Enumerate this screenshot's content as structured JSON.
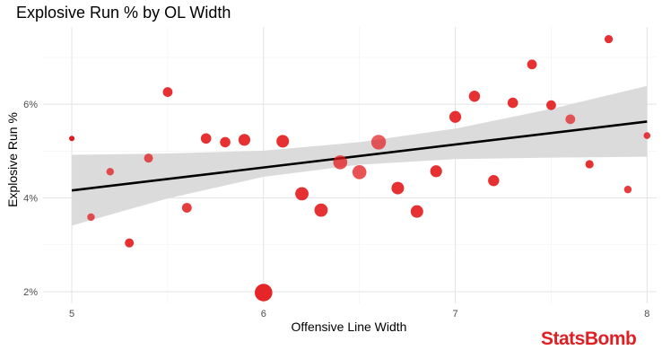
{
  "brand": {
    "name": "StatsBomb",
    "color": "#e01f25"
  },
  "chart_data": {
    "type": "scatter",
    "title": "Explosive Run % by OL Width",
    "xlabel": "Offensive Line Width",
    "ylabel": "Explosive Run %",
    "xlim": [
      4.85,
      8.05
    ],
    "ylim": [
      1.75,
      7.65
    ],
    "x_ticks": [
      5,
      6,
      7,
      8
    ],
    "y_ticks": [
      2,
      4,
      6
    ],
    "y_tick_labels": [
      "2%",
      "4%",
      "6%"
    ],
    "grid": true,
    "legend": "none",
    "point_color": "#e31a1c",
    "points": [
      {
        "x": 5.0,
        "y": 5.27,
        "size": 0.1,
        "alpha": 1.0
      },
      {
        "x": 5.1,
        "y": 3.59,
        "size": 0.25,
        "alpha": 0.75
      },
      {
        "x": 5.2,
        "y": 4.56,
        "size": 0.25,
        "alpha": 0.75
      },
      {
        "x": 5.3,
        "y": 3.04,
        "size": 0.35,
        "alpha": 0.9
      },
      {
        "x": 5.4,
        "y": 4.85,
        "size": 0.35,
        "alpha": 0.75
      },
      {
        "x": 5.5,
        "y": 6.26,
        "size": 0.4,
        "alpha": 0.9
      },
      {
        "x": 5.6,
        "y": 3.79,
        "size": 0.4,
        "alpha": 0.85
      },
      {
        "x": 5.7,
        "y": 5.27,
        "size": 0.45,
        "alpha": 0.9
      },
      {
        "x": 5.8,
        "y": 5.19,
        "size": 0.45,
        "alpha": 0.9
      },
      {
        "x": 5.9,
        "y": 5.24,
        "size": 0.55,
        "alpha": 0.9
      },
      {
        "x": 6.0,
        "y": 1.98,
        "size": 0.95,
        "alpha": 0.95
      },
      {
        "x": 6.1,
        "y": 5.21,
        "size": 0.6,
        "alpha": 0.9
      },
      {
        "x": 6.2,
        "y": 4.09,
        "size": 0.65,
        "alpha": 0.9
      },
      {
        "x": 6.3,
        "y": 3.74,
        "size": 0.65,
        "alpha": 0.9
      },
      {
        "x": 6.4,
        "y": 4.76,
        "size": 0.7,
        "alpha": 0.75
      },
      {
        "x": 6.5,
        "y": 4.55,
        "size": 0.7,
        "alpha": 0.75
      },
      {
        "x": 6.6,
        "y": 5.19,
        "size": 0.75,
        "alpha": 0.7
      },
      {
        "x": 6.7,
        "y": 4.21,
        "size": 0.6,
        "alpha": 0.9
      },
      {
        "x": 6.8,
        "y": 3.71,
        "size": 0.6,
        "alpha": 0.9
      },
      {
        "x": 6.9,
        "y": 4.57,
        "size": 0.55,
        "alpha": 0.9
      },
      {
        "x": 7.0,
        "y": 5.73,
        "size": 0.55,
        "alpha": 0.9
      },
      {
        "x": 7.1,
        "y": 6.17,
        "size": 0.5,
        "alpha": 0.9
      },
      {
        "x": 7.2,
        "y": 4.37,
        "size": 0.5,
        "alpha": 0.9
      },
      {
        "x": 7.3,
        "y": 6.03,
        "size": 0.45,
        "alpha": 0.9
      },
      {
        "x": 7.4,
        "y": 6.85,
        "size": 0.4,
        "alpha": 0.9
      },
      {
        "x": 7.5,
        "y": 5.98,
        "size": 0.4,
        "alpha": 0.9
      },
      {
        "x": 7.6,
        "y": 5.68,
        "size": 0.4,
        "alpha": 0.7
      },
      {
        "x": 7.7,
        "y": 4.72,
        "size": 0.3,
        "alpha": 0.9
      },
      {
        "x": 7.8,
        "y": 7.39,
        "size": 0.3,
        "alpha": 0.9
      },
      {
        "x": 7.9,
        "y": 4.18,
        "size": 0.25,
        "alpha": 0.85
      },
      {
        "x": 8.0,
        "y": 5.33,
        "size": 0.2,
        "alpha": 0.85
      }
    ],
    "trend_line": {
      "x": [
        5.0,
        8.0
      ],
      "y": [
        4.16,
        5.63
      ],
      "color": "#000000"
    },
    "confidence_band": {
      "x": [
        5.0,
        5.5,
        6.0,
        6.5,
        7.0,
        7.5,
        8.0
      ],
      "lower": [
        3.41,
        3.99,
        4.45,
        4.71,
        4.83,
        4.86,
        4.88
      ],
      "upper": [
        4.92,
        4.95,
        5.01,
        5.19,
        5.48,
        5.9,
        6.39
      ],
      "color": "#d9d9d9"
    }
  }
}
